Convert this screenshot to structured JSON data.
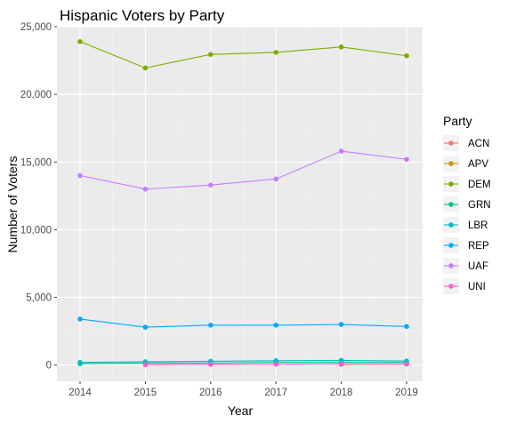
{
  "chart_data": {
    "type": "line",
    "title": "Hispanic Voters by Party",
    "xlabel": "Year",
    "ylabel": "Number of Voters",
    "x": [
      2014,
      2015,
      2016,
      2017,
      2018,
      2019
    ],
    "ylim": [
      -1200,
      25000
    ],
    "y_ticks": [
      0,
      5000,
      10000,
      15000,
      20000,
      25000
    ],
    "y_tick_labels": [
      "0",
      "5,000",
      "10,000",
      "15,000",
      "20,000",
      "25,000"
    ],
    "x_tick_labels": [
      "2014",
      "2015",
      "2016",
      "2017",
      "2018",
      "2019"
    ],
    "grid": true,
    "legend_title": "Party",
    "legend_position": "right",
    "series": [
      {
        "name": "ACN",
        "color": "#F8766D",
        "values": [
          null,
          null,
          null,
          null,
          null,
          100
        ]
      },
      {
        "name": "APV",
        "color": "#C49A00",
        "values": [
          null,
          null,
          null,
          null,
          50,
          80
        ]
      },
      {
        "name": "DEM",
        "color": "#7CAE00",
        "values": [
          23900,
          21950,
          22950,
          23100,
          23500,
          22850
        ]
      },
      {
        "name": "GRN",
        "color": "#00C08B",
        "values": [
          100,
          150,
          150,
          200,
          200,
          200
        ]
      },
      {
        "name": "LBR",
        "color": "#00BFC4",
        "values": [
          200,
          250,
          280,
          320,
          350,
          300
        ]
      },
      {
        "name": "REP",
        "color": "#00A9FF",
        "values": [
          3400,
          2800,
          2950,
          2950,
          3000,
          2850
        ]
      },
      {
        "name": "UAF",
        "color": "#C77CFF",
        "values": [
          14000,
          13000,
          13300,
          13750,
          15800,
          15200
        ]
      },
      {
        "name": "UNI",
        "color": "#FF61CC",
        "values": [
          null,
          30,
          50,
          60,
          80,
          70
        ]
      }
    ]
  }
}
